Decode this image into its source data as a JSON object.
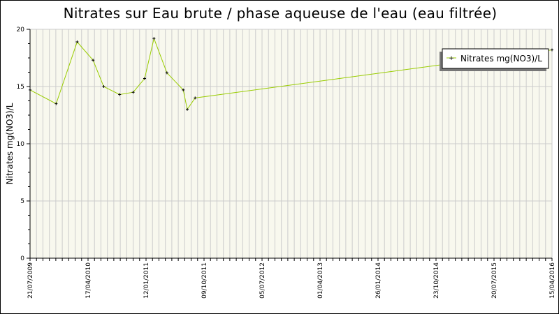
{
  "chart_data": {
    "type": "line",
    "title": "Nitrates sur Eau brute / phase aqueuse de l'eau (eau filtrée)",
    "xlabel": "",
    "ylabel": "Nitrates mg(NO3)/L",
    "ylim": [
      0,
      20
    ],
    "xlim": [
      "21/07/2009",
      "15/04/2016"
    ],
    "x_tick_labels": [
      "21/07/2009",
      "17/04/2010",
      "12/01/2011",
      "09/10/2011",
      "05/07/2012",
      "01/04/2013",
      "26/01/2014",
      "23/10/2014",
      "20/07/2015",
      "15/04/2016"
    ],
    "y_tick_labels": [
      "0",
      "5",
      "10",
      "15",
      "20"
    ],
    "grid": true,
    "legend_position": "top-right",
    "series": [
      {
        "name": "Nitrates mg(NO3)/L",
        "color": "#99cc00",
        "x": [
          "2009-07-21",
          "2009-11-21",
          "2010-02-28",
          "2010-05-14",
          "2010-07-03",
          "2010-09-16",
          "2010-11-19",
          "2011-01-12",
          "2011-02-25",
          "2011-04-27",
          "2011-07-13",
          "2011-08-01",
          "2011-09-07",
          "2016-04-15"
        ],
        "y": [
          14.7,
          13.5,
          18.9,
          17.3,
          15.0,
          14.3,
          14.5,
          15.7,
          19.2,
          16.2,
          14.7,
          13.0,
          14.0,
          18.2
        ]
      }
    ]
  }
}
